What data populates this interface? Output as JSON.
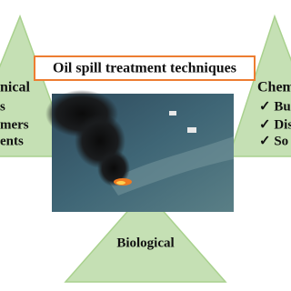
{
  "title": "Oil spill treatment techniques",
  "left": {
    "heading": "nical",
    "items": [
      "s",
      "mers",
      "ents"
    ]
  },
  "right": {
    "heading": "Chem",
    "items": [
      "✓ Bu",
      "✓ Dis",
      "✓ So"
    ]
  },
  "bottom": {
    "heading": "Biological"
  }
}
